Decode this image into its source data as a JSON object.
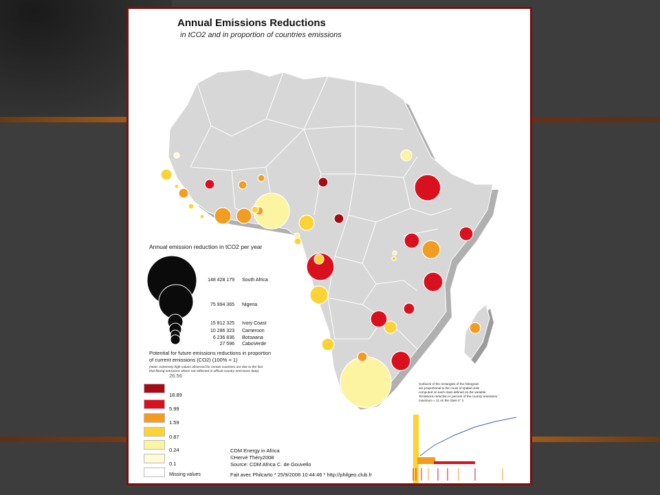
{
  "title": "Annual Emissions Reductions",
  "subtitle": "in tCO2 and in proportion of countries emissions",
  "size_legend": {
    "title": "Annual emission reduction in tCO2 per year",
    "items": [
      {
        "value": "148 428 179",
        "label": "South Africa"
      },
      {
        "value": "75 994 365",
        "label": "Nigeria"
      },
      {
        "value": "15 812 325",
        "label": "Ivory Coast"
      },
      {
        "value": "10 286 323",
        "label": "Cameroon"
      },
      {
        "value": "6 236 836",
        "label": "Botswana"
      },
      {
        "value": "27 596",
        "label": "CaboVerde"
      }
    ]
  },
  "color_legend": {
    "title_line1": "Potential for future emissions reductions in proportion",
    "title_line2": "of current emissions (CO2) (100% = 1)",
    "note_line1": "(Note: extremely high values observed for certain countries are due to the fact",
    "note_line2": "that flaring emissions where not reflected in official country emissions data)",
    "classes": [
      {
        "label": "26.56",
        "color": "#8b0a12"
      },
      {
        "label": "18.89",
        "color": "#a50c16"
      },
      {
        "label": "5.99",
        "color": "#d9101e"
      },
      {
        "label": "1.59",
        "color": "#f39c22"
      },
      {
        "label": "0.87",
        "color": "#fcd335"
      },
      {
        "label": "0.24",
        "color": "#fdf4a2"
      },
      {
        "label": "0.1",
        "color": "#fefbd8"
      }
    ],
    "missing_label": "Missing values"
  },
  "credits": {
    "line1": "CDM Energy in Africa",
    "line2": "©Hervé Théry2008",
    "line3": "Source: CDM Africa C. de Gouvello",
    "made_with": "Fait avec Philcarto * 25/9/2008 10:44:46 * http://philgeo.club.fr"
  },
  "histogram": {
    "text_line1": "Surfaces of the rectangles of the histogram",
    "text_line2": "are proportional to the count of spatial units",
    "text_line3": "computed on each class defined on the variable",
    "text_line4": "'Emissions reduction in percent of the country emissions '",
    "text_line5": "maximum = 11 on the class n° 3"
  },
  "colors": {
    "frame": "#7a0f0f",
    "land": "#d7d7d7",
    "land_stroke": "#ffffff",
    "shadow": "#9a9a9a"
  }
}
